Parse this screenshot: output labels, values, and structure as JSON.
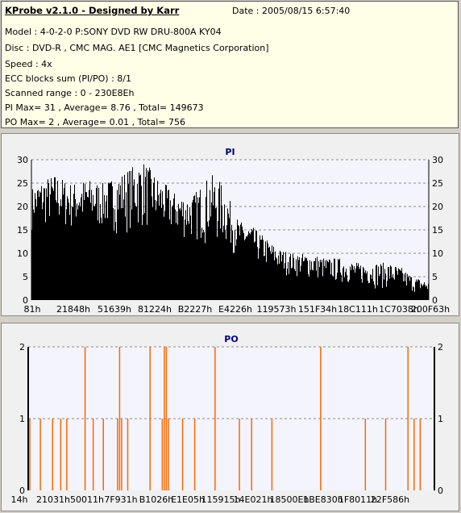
{
  "header": {
    "title": "KProbe v2.1.0 - Designed by Karr",
    "date": "Date : 2005/08/15 6:57:40",
    "lines": [
      "Model : 4-0-2-0 P:SONY    DVD RW DRU-800A  KY04",
      "Disc : DVD-R , CMC MAG. AE1 [CMC Magnetics Corporation]",
      "Speed : 4x",
      "ECC blocks sum (PI/PO) : 8/1",
      "Scanned range : 0 - 230E8Eh",
      "PI Max= 31 , Average= 8.76 , Total= 149673",
      "PO Max= 2 , Average= 0.01 , Total= 756"
    ]
  },
  "chart_data": [
    {
      "type": "bar",
      "title": "PI",
      "ylim": [
        0,
        30
      ],
      "yticks": [
        0,
        5,
        10,
        15,
        20,
        25,
        30
      ],
      "xticks": [
        "81h",
        "21848h",
        "51639h",
        "81224h",
        "B2227h",
        "E4226h",
        "119573h",
        "151F34h",
        "18C111h",
        "1C7038h",
        "200F63h"
      ],
      "color": "#000000",
      "envelope": [
        [
          0,
          24
        ],
        [
          0.03,
          26
        ],
        [
          0.06,
          27
        ],
        [
          0.1,
          25
        ],
        [
          0.14,
          26
        ],
        [
          0.18,
          25
        ],
        [
          0.22,
          27
        ],
        [
          0.26,
          29
        ],
        [
          0.28,
          30
        ],
        [
          0.32,
          26
        ],
        [
          0.36,
          23
        ],
        [
          0.4,
          22
        ],
        [
          0.42,
          24
        ],
        [
          0.45,
          27
        ],
        [
          0.48,
          25
        ],
        [
          0.5,
          21
        ],
        [
          0.52,
          17
        ],
        [
          0.55,
          16
        ],
        [
          0.58,
          14
        ],
        [
          0.62,
          11
        ],
        [
          0.66,
          10
        ],
        [
          0.7,
          10
        ],
        [
          0.74,
          9
        ],
        [
          0.78,
          9
        ],
        [
          0.82,
          8
        ],
        [
          0.86,
          8
        ],
        [
          0.9,
          8
        ],
        [
          0.93,
          7
        ],
        [
          0.96,
          5
        ],
        [
          1,
          4
        ]
      ],
      "floor": [
        [
          0,
          15
        ],
        [
          0.1,
          14
        ],
        [
          0.2,
          14
        ],
        [
          0.3,
          14
        ],
        [
          0.4,
          12
        ],
        [
          0.5,
          10
        ],
        [
          0.55,
          8
        ],
        [
          0.6,
          6
        ],
        [
          0.7,
          4
        ],
        [
          0.8,
          3
        ],
        [
          0.9,
          2
        ],
        [
          1,
          1
        ]
      ]
    },
    {
      "type": "bar",
      "title": "PO",
      "ylim": [
        0,
        2
      ],
      "yticks": [
        0,
        1,
        2
      ],
      "xticks": [
        "14h",
        "21031h",
        "50011h",
        "7F931h",
        "B1026h",
        "E1E05h",
        "115915h",
        "14E021h",
        "18500Eh",
        "1BE830h",
        "1F8011h",
        "22F586h"
      ],
      "color": "#ff6600",
      "spikes": [
        [
          0.004,
          1
        ],
        [
          0.03,
          1
        ],
        [
          0.06,
          1
        ],
        [
          0.08,
          1
        ],
        [
          0.095,
          1
        ],
        [
          0.14,
          2
        ],
        [
          0.16,
          1
        ],
        [
          0.185,
          1
        ],
        [
          0.22,
          1
        ],
        [
          0.225,
          2
        ],
        [
          0.23,
          1
        ],
        [
          0.245,
          1
        ],
        [
          0.3,
          2
        ],
        [
          0.33,
          1
        ],
        [
          0.335,
          2
        ],
        [
          0.34,
          2
        ],
        [
          0.345,
          1
        ],
        [
          0.38,
          1
        ],
        [
          0.41,
          1
        ],
        [
          0.46,
          2
        ],
        [
          0.52,
          1
        ],
        [
          0.55,
          1
        ],
        [
          0.6,
          1
        ],
        [
          0.72,
          2
        ],
        [
          0.83,
          1
        ],
        [
          0.88,
          1
        ],
        [
          0.935,
          2
        ],
        [
          0.95,
          1
        ],
        [
          0.965,
          1
        ]
      ]
    }
  ]
}
